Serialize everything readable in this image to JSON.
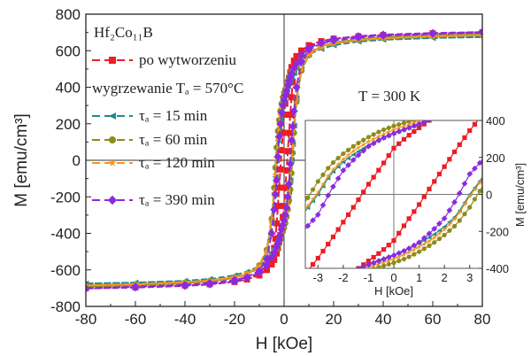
{
  "chart_data": {
    "type": "line",
    "title": "",
    "xlabel": "H [kOe]",
    "ylabel": "M [emu/cm³]",
    "xlim": [
      -80,
      80
    ],
    "ylim": [
      -800,
      800
    ],
    "xticks": [
      -80,
      -60,
      -40,
      -20,
      0,
      20,
      40,
      60,
      80
    ],
    "yticks": [
      -800,
      -600,
      -400,
      -200,
      0,
      200,
      400,
      600,
      800
    ],
    "grid": false,
    "legend_title": "Hf₂Co₁₁B",
    "legend_subtitle": "wygrzewanie Tₐ = 570°C",
    "legend_position": "top-left",
    "annotation": "T = 300 K",
    "branch_note": "upper (descending) branch listed; lower branch is point-symmetric (H, M) → (−H, −M)",
    "H": [
      80,
      60,
      40,
      30,
      20,
      15,
      10,
      7,
      5,
      4,
      3,
      2.5,
      2,
      1.5,
      1,
      0.5,
      0,
      -0.5,
      -1,
      -1.5,
      -2,
      -2.5,
      -3,
      -3.5,
      -4,
      -5,
      -7,
      -10,
      -15,
      -20,
      -30,
      -40,
      -60,
      -80
    ],
    "series": [
      {
        "name": "po wytworzeniu",
        "color": "#ee1c24",
        "marker": "square",
        "M": [
          700,
          695,
          685,
          678,
          665,
          650,
          625,
          600,
          570,
          545,
          510,
          480,
          450,
          410,
          360,
          310,
          250,
          150,
          55,
          -50,
          -150,
          -250,
          -345,
          -430,
          -480,
          -545,
          -600,
          -630,
          -652,
          -665,
          -678,
          -685,
          -692,
          -698
        ]
      },
      {
        "name": "τₐ = 15 min",
        "color": "#1f8c8c",
        "marker": "triangle-left",
        "M": [
          675,
          670,
          660,
          650,
          630,
          610,
          580,
          545,
          505,
          480,
          455,
          440,
          425,
          405,
          380,
          355,
          330,
          300,
          265,
          225,
          175,
          110,
          0,
          -90,
          -190,
          -340,
          -500,
          -580,
          -625,
          -640,
          -655,
          -662,
          -670,
          -675
        ]
      },
      {
        "name": "τₐ = 60 min",
        "color": "#8c8c1a",
        "marker": "circle",
        "M": [
          690,
          684,
          672,
          662,
          642,
          622,
          592,
          560,
          525,
          505,
          485,
          470,
          455,
          435,
          410,
          390,
          370,
          345,
          310,
          270,
          220,
          160,
          70,
          -40,
          -150,
          -320,
          -490,
          -575,
          -625,
          -645,
          -662,
          -672,
          -682,
          -690
        ]
      },
      {
        "name": "τₐ = 120 min",
        "color": "#f7941e",
        "marker": "star",
        "M": [
          685,
          680,
          668,
          658,
          638,
          618,
          588,
          552,
          515,
          492,
          470,
          455,
          440,
          420,
          395,
          372,
          350,
          320,
          285,
          245,
          190,
          120,
          10,
          -80,
          -180,
          -335,
          -495,
          -578,
          -625,
          -642,
          -658,
          -667,
          -677,
          -685
        ]
      },
      {
        "name": "τₐ = 390 min",
        "color": "#8a2be2",
        "marker": "diamond",
        "M": [
          702,
          697,
          688,
          680,
          664,
          645,
          615,
          575,
          530,
          505,
          475,
          455,
          435,
          410,
          380,
          355,
          330,
          300,
          260,
          200,
          130,
          20,
          -110,
          -185,
          -270,
          -400,
          -540,
          -605,
          -640,
          -655,
          -672,
          -682,
          -692,
          -702
        ]
      }
    ],
    "inset": {
      "xlabel": "H [kOe]",
      "ylabel": "M [emu/cm³]",
      "xlim": [
        -3.5,
        3.5
      ],
      "ylim": [
        -400,
        400
      ],
      "xticks": [
        -3,
        -2,
        -1,
        0,
        1,
        2,
        3
      ],
      "yticks": [
        -400,
        -200,
        0,
        200,
        400
      ]
    }
  }
}
